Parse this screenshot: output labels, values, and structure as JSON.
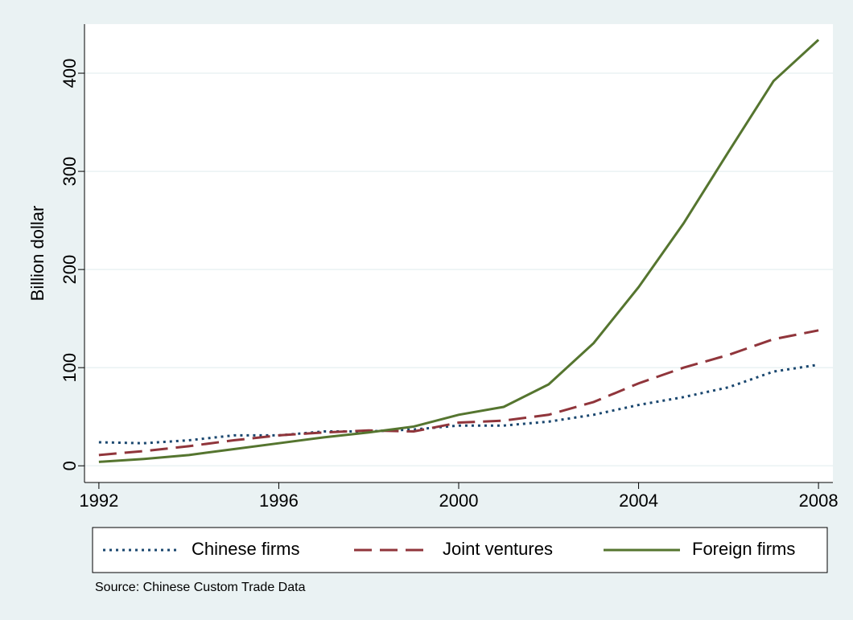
{
  "chart_data": {
    "type": "line",
    "y_label": "Billion dollar",
    "note": "Source: Chinese Custom Trade Data",
    "x": [
      1992,
      1993,
      1994,
      1995,
      1996,
      1997,
      1998,
      1999,
      2000,
      2001,
      2002,
      2003,
      2004,
      2005,
      2006,
      2007,
      2008
    ],
    "series": [
      {
        "name": "Chinese firms",
        "color": "#1a476f",
        "dash": "dotted",
        "values": [
          24,
          23,
          26,
          31,
          31,
          35,
          35,
          37,
          41,
          41,
          45,
          52,
          62,
          70,
          80,
          96,
          103
        ]
      },
      {
        "name": "Joint ventures",
        "color": "#90353b",
        "dash": "dashed",
        "values": [
          11,
          15,
          20,
          26,
          31,
          34,
          36,
          35,
          44,
          46,
          52,
          65,
          84,
          100,
          113,
          129,
          138
        ]
      },
      {
        "name": "Foreign firms",
        "color": "#55752f",
        "dash": "solid",
        "values": [
          4,
          7,
          11,
          17,
          23,
          29,
          34,
          40,
          52,
          60,
          83,
          125,
          182,
          247,
          320,
          392,
          434
        ]
      }
    ],
    "xlim": [
      1991.68,
      2008.32
    ],
    "xticks": [
      1992,
      1996,
      2000,
      2004,
      2008
    ],
    "ylim": [
      -17,
      450
    ],
    "yticks": [
      0,
      100,
      200,
      300,
      400
    ],
    "grid": true,
    "legend": "bottom"
  }
}
